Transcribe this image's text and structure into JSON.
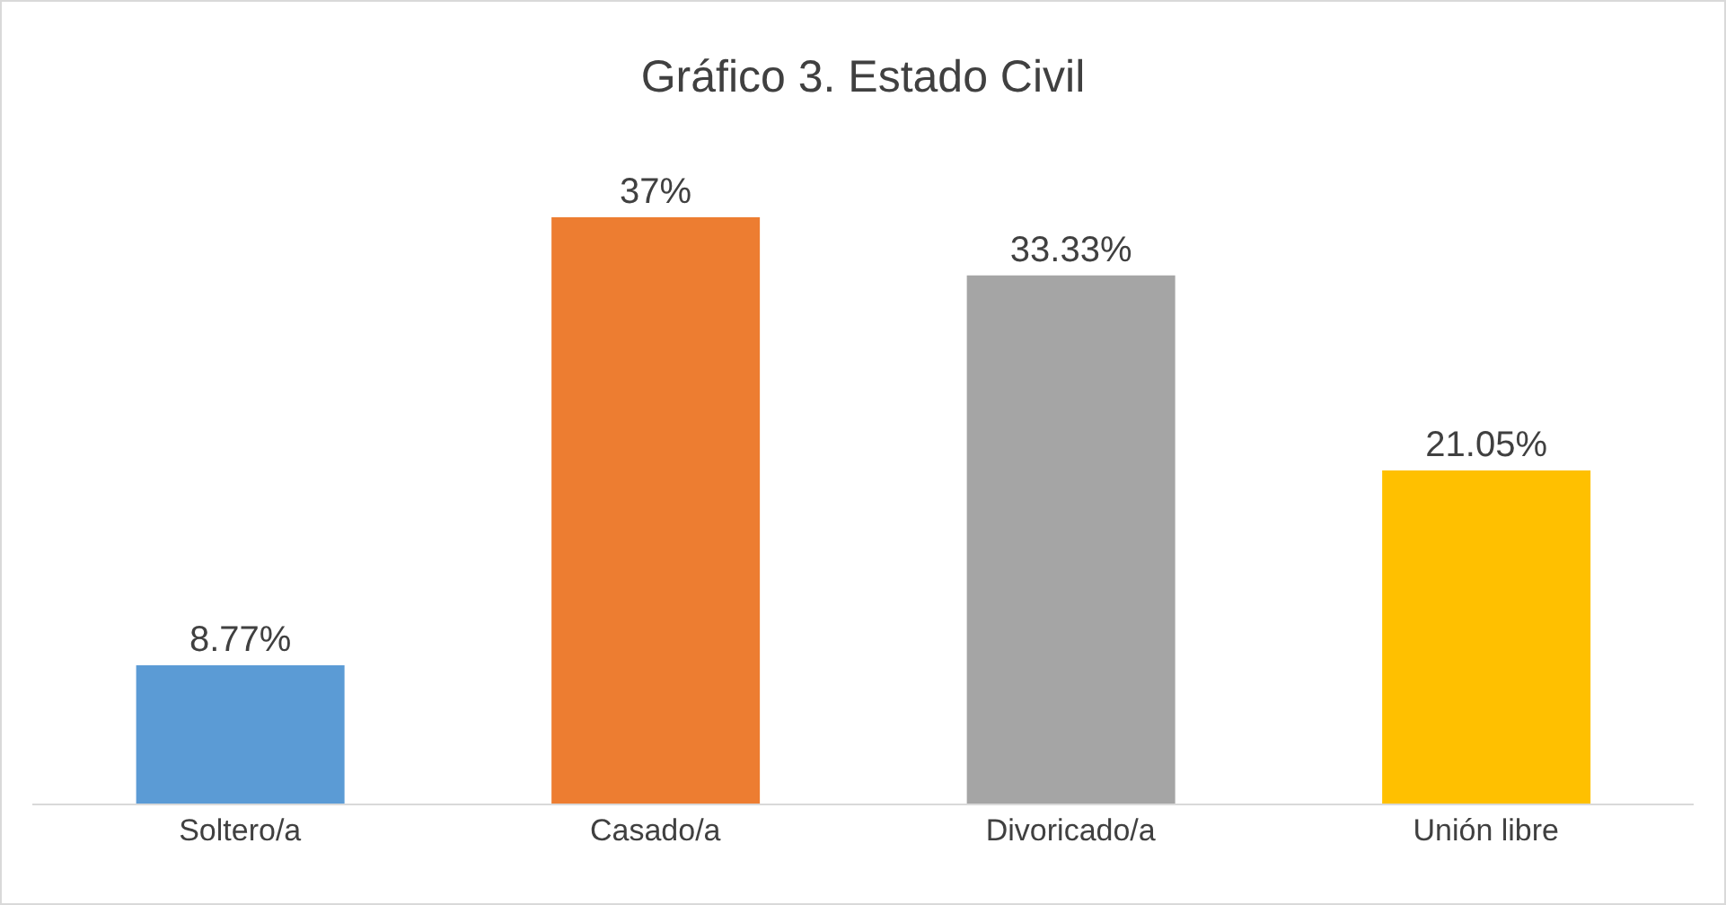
{
  "chart_data": {
    "type": "bar",
    "title": "Gráfico 3. Estado Civil",
    "categories": [
      "Soltero/a",
      "Casado/a",
      "Divoricado/a",
      "Unión libre"
    ],
    "values": [
      8.77,
      37,
      33.33,
      21.05
    ],
    "colors": [
      "#5b9bd5",
      "#ed7d31",
      "#a5a5a5",
      "#ffc000"
    ],
    "value_labels": [
      "8.77%",
      "37%",
      "33.33%",
      "21.05%"
    ],
    "grid": false,
    "legend": false
  }
}
